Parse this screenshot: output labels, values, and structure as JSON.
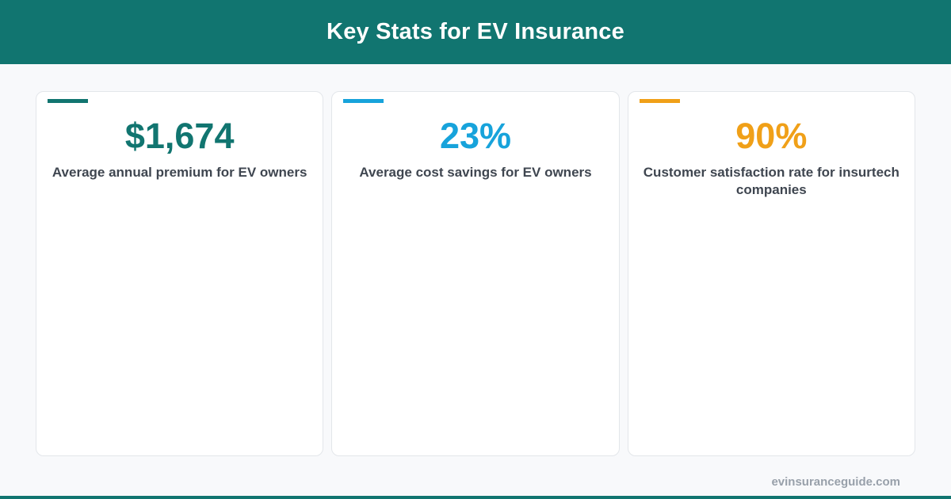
{
  "header": {
    "title": "Key Stats for EV Insurance",
    "bg_color": "#117570"
  },
  "cards": [
    {
      "value": "$1,674",
      "description": "Average annual premium for EV owners",
      "color": "#117570"
    },
    {
      "value": "23%",
      "description": "Average cost savings for EV owners",
      "color": "#17a3db"
    },
    {
      "value": "90%",
      "description": "Customer satisfaction rate for insurtech companies",
      "color": "#f0a018"
    }
  ],
  "footer": {
    "site": "evinsuranceguide.com"
  }
}
